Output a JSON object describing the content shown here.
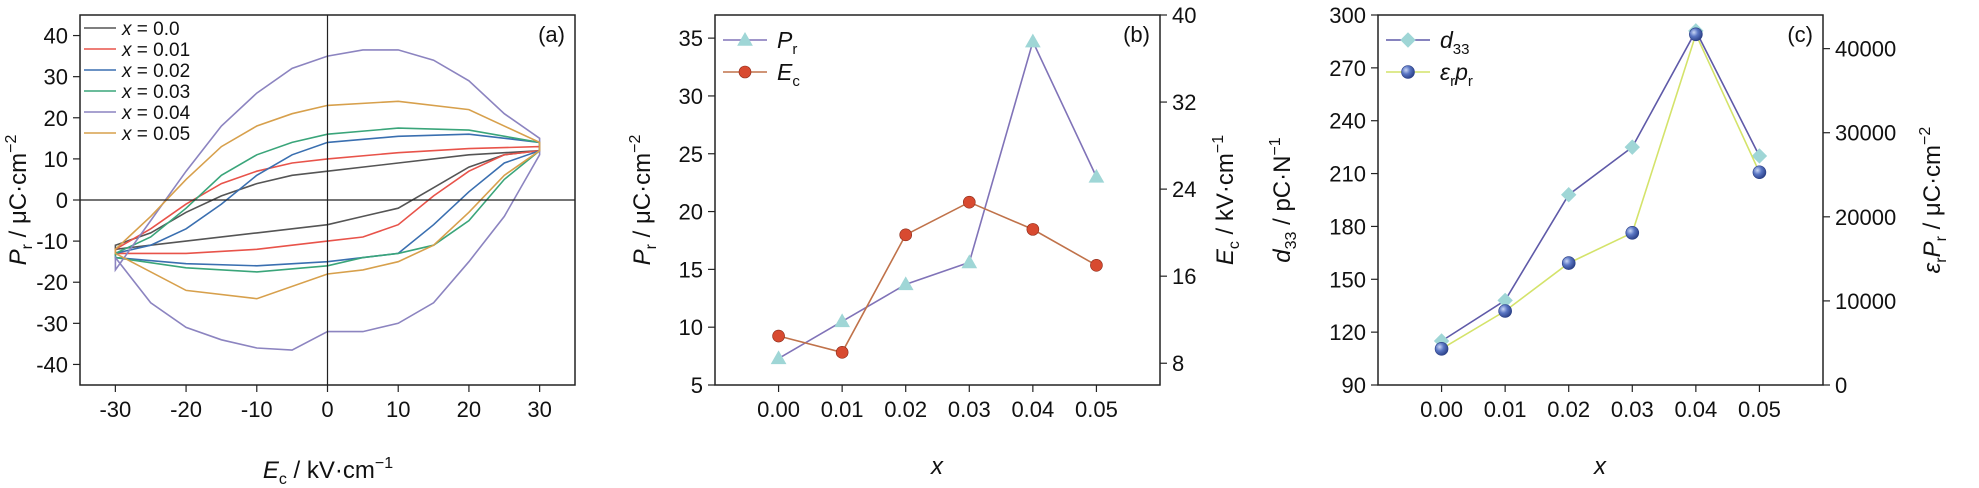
{
  "chart_data": [
    {
      "type": "line",
      "panel_label": "(a)",
      "xlabel": "E_c / kV·cm⁻¹",
      "ylabel": "P_r / μC·cm⁻²",
      "xlim": [
        -35,
        35
      ],
      "ylim": [
        -45,
        45
      ],
      "xticks": [
        -30,
        -20,
        -10,
        0,
        10,
        20,
        30
      ],
      "xtick_labels": [
        "-30",
        "-20",
        "-10",
        "0",
        "10",
        "20",
        "30"
      ],
      "yticks": [
        -40,
        -30,
        -20,
        -10,
        0,
        10,
        20,
        30,
        40
      ],
      "ytick_labels": [
        "-40",
        "-30",
        "-20",
        "-10",
        "0",
        "10",
        "20",
        "30",
        "40"
      ],
      "legend_position": "top-left",
      "series": [
        {
          "name": "x = 0.0",
          "color": "#555555",
          "upper": [
            [
              -30,
              -11
            ],
            [
              -25,
              -8
            ],
            [
              -20,
              -3
            ],
            [
              -15,
              1
            ],
            [
              -10,
              4
            ],
            [
              -5,
              6
            ],
            [
              0,
              7
            ],
            [
              10,
              9
            ],
            [
              20,
              11
            ],
            [
              30,
              12
            ]
          ],
          "lower": [
            [
              -30,
              -12
            ],
            [
              -20,
              -10
            ],
            [
              -10,
              -8
            ],
            [
              0,
              -6
            ],
            [
              5,
              -4
            ],
            [
              10,
              -2
            ],
            [
              15,
              3
            ],
            [
              20,
              8
            ],
            [
              25,
              11
            ],
            [
              30,
              12
            ]
          ]
        },
        {
          "name": "x = 0.01",
          "color": "#e8534a",
          "upper": [
            [
              -30,
              -12
            ],
            [
              -25,
              -7
            ],
            [
              -20,
              -1
            ],
            [
              -15,
              4
            ],
            [
              -10,
              7
            ],
            [
              -5,
              9
            ],
            [
              0,
              10
            ],
            [
              10,
              11.5
            ],
            [
              20,
              12.5
            ],
            [
              30,
              13
            ]
          ],
          "lower": [
            [
              -30,
              -13
            ],
            [
              -20,
              -13
            ],
            [
              -10,
              -12
            ],
            [
              0,
              -10
            ],
            [
              5,
              -9
            ],
            [
              10,
              -6
            ],
            [
              15,
              1
            ],
            [
              20,
              7
            ],
            [
              25,
              11
            ],
            [
              30,
              12
            ]
          ]
        },
        {
          "name": "x = 0.02",
          "color": "#3a6fb0",
          "upper": [
            [
              -30,
              -13
            ],
            [
              -25,
              -11
            ],
            [
              -20,
              -7
            ],
            [
              -15,
              -1
            ],
            [
              -10,
              6
            ],
            [
              -5,
              11
            ],
            [
              0,
              14
            ],
            [
              10,
              15.5
            ],
            [
              20,
              16
            ],
            [
              30,
              14
            ]
          ],
          "lower": [
            [
              -30,
              -14
            ],
            [
              -20,
              -15.5
            ],
            [
              -10,
              -16
            ],
            [
              0,
              -15
            ],
            [
              5,
              -14
            ],
            [
              10,
              -13
            ],
            [
              15,
              -6
            ],
            [
              20,
              2
            ],
            [
              25,
              9
            ],
            [
              30,
              12
            ]
          ]
        },
        {
          "name": "x = 0.03",
          "color": "#3aa57a",
          "upper": [
            [
              -30,
              -13
            ],
            [
              -25,
              -9
            ],
            [
              -20,
              -2
            ],
            [
              -15,
              6
            ],
            [
              -10,
              11
            ],
            [
              -5,
              14
            ],
            [
              0,
              16
            ],
            [
              10,
              17.5
            ],
            [
              20,
              17
            ],
            [
              30,
              14
            ]
          ],
          "lower": [
            [
              -30,
              -14
            ],
            [
              -20,
              -16.5
            ],
            [
              -10,
              -17.5
            ],
            [
              0,
              -16
            ],
            [
              5,
              -14
            ],
            [
              10,
              -13
            ],
            [
              15,
              -11
            ],
            [
              20,
              -5
            ],
            [
              25,
              5
            ],
            [
              30,
              12
            ]
          ]
        },
        {
          "name": "x = 0.04",
          "color": "#8c84c0",
          "upper": [
            [
              -30,
              -17
            ],
            [
              -25,
              -5
            ],
            [
              -20,
              7
            ],
            [
              -15,
              18
            ],
            [
              -10,
              26
            ],
            [
              -5,
              32
            ],
            [
              0,
              35
            ],
            [
              5,
              36.5
            ],
            [
              10,
              36.5
            ],
            [
              15,
              34
            ],
            [
              20,
              29
            ],
            [
              25,
              21
            ],
            [
              30,
              15
            ]
          ],
          "lower": [
            [
              -30,
              -14
            ],
            [
              -25,
              -25
            ],
            [
              -20,
              -31
            ],
            [
              -15,
              -34
            ],
            [
              -10,
              -36
            ],
            [
              -5,
              -36.5
            ],
            [
              0,
              -32
            ],
            [
              5,
              -32
            ],
            [
              10,
              -30
            ],
            [
              15,
              -25
            ],
            [
              20,
              -15
            ],
            [
              25,
              -4
            ],
            [
              30,
              11
            ]
          ]
        },
        {
          "name": "x = 0.05",
          "color": "#d7a04c",
          "upper": [
            [
              -30,
              -12
            ],
            [
              -25,
              -4
            ],
            [
              -20,
              5
            ],
            [
              -15,
              13
            ],
            [
              -10,
              18
            ],
            [
              -5,
              21
            ],
            [
              0,
              23
            ],
            [
              10,
              24
            ],
            [
              20,
              22
            ],
            [
              30,
              14
            ]
          ],
          "lower": [
            [
              -30,
              -13
            ],
            [
              -20,
              -22
            ],
            [
              -10,
              -24
            ],
            [
              0,
              -18
            ],
            [
              5,
              -17
            ],
            [
              10,
              -15
            ],
            [
              15,
              -11
            ],
            [
              20,
              -3
            ],
            [
              25,
              6
            ],
            [
              30,
              12
            ]
          ]
        }
      ]
    },
    {
      "type": "line",
      "panel_label": "(b)",
      "xlabel": "x",
      "ylabel_left": "P_r / μC·cm⁻²",
      "ylabel_right": "E_c / kV·cm⁻¹",
      "x": [
        0.0,
        0.01,
        0.02,
        0.03,
        0.04,
        0.05
      ],
      "xtick_labels": [
        "0.00",
        "0.01",
        "0.02",
        "0.03",
        "0.04",
        "0.05"
      ],
      "xlim": [
        -0.01,
        0.06
      ],
      "ylim_left": [
        5,
        37
      ],
      "yticks_left": [
        5,
        10,
        15,
        20,
        25,
        30,
        35
      ],
      "ylim_right": [
        6,
        40
      ],
      "yticks_right": [
        8,
        16,
        24,
        32,
        40
      ],
      "legend_position": "top-left",
      "series": [
        {
          "name": "P_r",
          "axis": "left",
          "color": "#8073b8",
          "marker": "triangle",
          "marker_color": "#9fd6d6",
          "values": [
            7.3,
            10.5,
            13.7,
            15.6,
            34.7,
            23.0
          ]
        },
        {
          "name": "E_c",
          "axis": "right",
          "color": "#c0724a",
          "marker": "circle",
          "marker_color": "#d84a30",
          "values": [
            10.5,
            9.0,
            19.8,
            22.8,
            20.3,
            17.0
          ]
        }
      ]
    },
    {
      "type": "line",
      "panel_label": "(c)",
      "xlabel": "x",
      "ylabel_left": "d_33 / pC·N⁻¹",
      "ylabel_right": "ε_r P_r / μC·cm⁻²",
      "x": [
        0.0,
        0.01,
        0.02,
        0.03,
        0.04,
        0.05
      ],
      "xtick_labels": [
        "0.00",
        "0.01",
        "0.02",
        "0.03",
        "0.04",
        "0.05"
      ],
      "xlim": [
        -0.01,
        0.06
      ],
      "ylim_left": [
        90,
        300
      ],
      "yticks_left": [
        90,
        120,
        150,
        180,
        210,
        240,
        270,
        300
      ],
      "ylim_right": [
        0,
        44000
      ],
      "yticks_right": [
        0,
        10000,
        20000,
        30000,
        40000
      ],
      "legend_position": "top-left",
      "series": [
        {
          "name": "d_33",
          "axis": "left",
          "color": "#5f5aa8",
          "marker": "diamond",
          "marker_color": "#9fd6d6",
          "values": [
            115,
            138,
            198,
            225,
            291,
            220
          ]
        },
        {
          "name": "ε_r p_r",
          "axis": "right",
          "color": "#d4e36a",
          "marker": "sphere",
          "marker_color": "#5068b0",
          "values": [
            4300,
            8800,
            14500,
            18100,
            41700,
            25300
          ]
        }
      ]
    }
  ]
}
